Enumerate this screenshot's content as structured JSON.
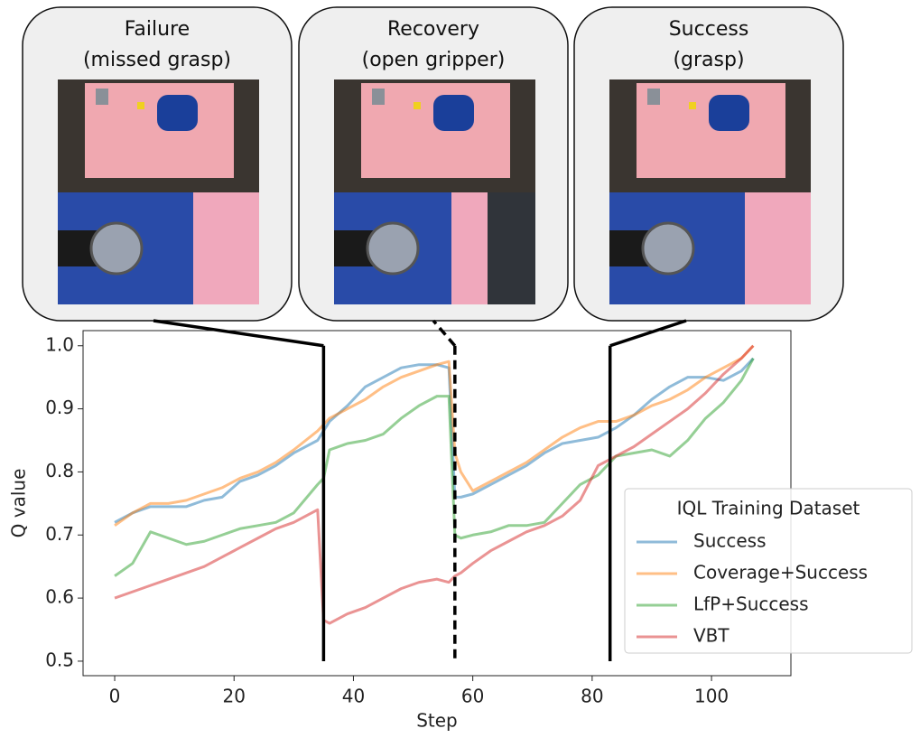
{
  "chart_data": {
    "type": "line",
    "x_label": "Step",
    "y_label": "Q value",
    "xlim": [
      -5.3,
      113.3
    ],
    "ylim": [
      0.477,
      1.024
    ],
    "xticks": [
      0,
      20,
      40,
      60,
      80,
      100
    ],
    "yticks": [
      0.5,
      0.6,
      0.7,
      0.8,
      0.9,
      {
        "value": 1,
        "label": "1.0"
      }
    ],
    "legend_title": "IQL Training Dataset",
    "legend_position": "lower right",
    "x": [
      0,
      3,
      6,
      9,
      12,
      15,
      18,
      21,
      24,
      27,
      30,
      34,
      35,
      36,
      39,
      42,
      45,
      48,
      51,
      54,
      56,
      57,
      58,
      60,
      63,
      66,
      69,
      72,
      75,
      78,
      81,
      84,
      87,
      90,
      93,
      96,
      99,
      102,
      105,
      107
    ],
    "series": [
      {
        "name": "Success",
        "color": "#1f77b4",
        "values": [
          0.72,
          0.735,
          0.745,
          0.745,
          0.745,
          0.755,
          0.76,
          0.785,
          0.795,
          0.81,
          0.83,
          0.85,
          0.865,
          0.88,
          0.905,
          0.935,
          0.95,
          0.965,
          0.97,
          0.97,
          0.965,
          0.76,
          0.76,
          0.765,
          0.78,
          0.795,
          0.81,
          0.83,
          0.845,
          0.85,
          0.855,
          0.87,
          0.89,
          0.915,
          0.935,
          0.95,
          0.95,
          0.945,
          0.96,
          0.98
        ]
      },
      {
        "name": "Coverage+Success",
        "color": "#ff7f0e",
        "values": [
          0.715,
          0.735,
          0.75,
          0.75,
          0.755,
          0.765,
          0.775,
          0.79,
          0.8,
          0.815,
          0.835,
          0.865,
          0.875,
          0.885,
          0.9,
          0.915,
          0.935,
          0.95,
          0.96,
          0.97,
          0.975,
          0.83,
          0.8,
          0.77,
          0.785,
          0.8,
          0.815,
          0.835,
          0.855,
          0.87,
          0.88,
          0.88,
          0.89,
          0.905,
          0.915,
          0.93,
          0.95,
          0.965,
          0.98,
          1.0
        ]
      },
      {
        "name": "LfP+Success",
        "color": "#2ca02c",
        "values": [
          0.635,
          0.655,
          0.705,
          0.695,
          0.685,
          0.69,
          0.7,
          0.71,
          0.715,
          0.72,
          0.735,
          0.78,
          0.79,
          0.835,
          0.845,
          0.85,
          0.86,
          0.885,
          0.905,
          0.92,
          0.92,
          0.7,
          0.695,
          0.7,
          0.705,
          0.715,
          0.715,
          0.72,
          0.75,
          0.78,
          0.795,
          0.825,
          0.83,
          0.835,
          0.825,
          0.85,
          0.885,
          0.91,
          0.945,
          0.98
        ]
      },
      {
        "name": "VBT",
        "color": "#d62728",
        "values": [
          0.6,
          0.61,
          0.62,
          0.63,
          0.64,
          0.65,
          0.665,
          0.68,
          0.695,
          0.71,
          0.72,
          0.74,
          0.565,
          0.56,
          0.575,
          0.585,
          0.6,
          0.615,
          0.625,
          0.63,
          0.625,
          0.635,
          0.64,
          0.655,
          0.675,
          0.69,
          0.705,
          0.715,
          0.73,
          0.755,
          0.81,
          0.825,
          0.84,
          0.86,
          0.88,
          0.9,
          0.925,
          0.955,
          0.98,
          1.0
        ]
      }
    ],
    "panels": [
      {
        "title": "Failure",
        "subtitle": "(missed grasp)",
        "step": 35,
        "line": "solid"
      },
      {
        "title": "Recovery",
        "subtitle": "(open gripper)",
        "step": 57,
        "line": "dashed"
      },
      {
        "title": "Success",
        "subtitle": "(grasp)",
        "step": 83,
        "line": "solid"
      }
    ]
  }
}
